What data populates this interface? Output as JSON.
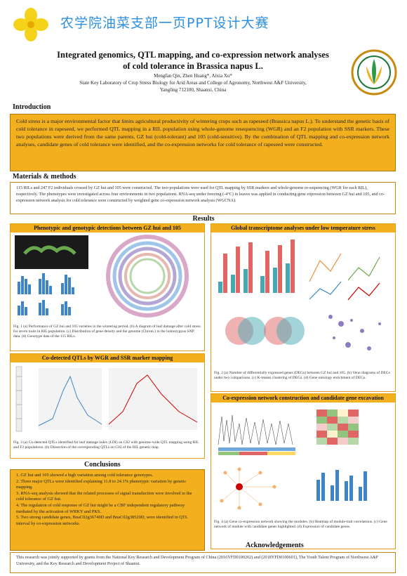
{
  "banner": {
    "title": "农学院油菜支部一页PPT设计大赛"
  },
  "poster": {
    "title_line1": "Integrated genomics, QTL mapping, and co-expression network analyses",
    "title_line2": "of cold tolerance in Brassica napus L.",
    "authors": "Mengfan Qin, Zhen Huang*, Aixia Xu*",
    "affiliation_line1": "State Key Laboratory of Crop Stress Biology for Arid Areas and College of Agronomy, Northwest A&F University,",
    "affiliation_line2": "Yangling 712100, Shaanxi, China"
  },
  "introduction": {
    "heading": "Introduction",
    "text": "Cold stress is a major environmental factor that limits agricultural productivity of wintering crops such as rapeseed (Brassica napus L.). To understand the genetic basis of cold tolerance in rapeseed, we performed QTL mapping in a RIL population using whole-genome resequencing (WGR) and an F2 population with SSR markers. These two populations were derived from the same parents, GZ hui (cold-tolerant) and 105 (cold-sensitive). By the combination of QTL mapping and co-expression network analyses, candidate genes of cold tolerance were identified, and the co-expression networks for cold tolerance of rapeseed were constructed."
  },
  "materials": {
    "heading": "Materials & methods",
    "text": "115 RILs and 247 F2 individuals crossed by GZ hui and 105 were constructed. The two populations were used for QTL mapping by SSR markers and whole-genome re-sequencing (WGR for each RIL), respectively. The phenotypes were investigated across four environments in two populations. RNA-seq under freezing (-4°C) in leaves was applied in conducting gene expression between GZ hui and 105, and co-expression network analysis for cold tolerance were constructed by weighted gene co-expression network analysis (WGCNA)."
  },
  "results": {
    "heading": "Results",
    "panel1_title": "Phenotypic and genotypic detections between GZ hui and 105",
    "panel1_caption": "Fig. 1 (a) Performance of GZ hui and 105 varieties in the wintering period. (b) A diagram of leaf damage after cold stress for seven traits in RIL population. (c) Distribution of gene density and the genome (Chrom.) in the homozygous SNP data. (d) Genotype data of the 115 RILs.",
    "panel2_title": "Global transcriptome analyses under low temperature stress",
    "panel2_caption": "Fig. 2 (a) Number of differentially expressed genes (DEGs) between GZ hui and 105. (b) Venn diagrams of DEGs under two comparisons. (c) K-means clustering of DEGs. (d) Gene ontology enrichment of DEGs.",
    "panel3_title": "Co-detected QTLs by WGR and SSR marker mapping",
    "panel3_caption": "Fig. 3 (a) Co-detected QTLs identified for leaf damage index (LDI) on C02 with genome-wide QTL mapping using RIL and F2 populations. (b) Dissection of the corresponding QTLs on C02 of the RIL genetic map.",
    "panel4_title": "Co-expression network construction and candidate gene excavation",
    "panel4_caption": "Fig. 4 (a) Gene co-expression network showing the modules. (b) Heatmap of module-trait correlations. (c) Gene network of module with candidate genes highlighted. (d) Expression of candidate genes."
  },
  "conclusions": {
    "heading": "Conclusions",
    "items": [
      "1. GZ hui and 105 showed a high variation among cold tolerance genotypes.",
      "2. Three major QTLs were identified explaining 11.8 to 24.1% phenotypic variation by genetic mapping.",
      "3. RNA-seq analysis showed that the related processes of signal transduction were involved in the cold tolerance of GZ hui.",
      "4. The regulation of cold response of GZ hui might be a CBF independent regulatory pathway mediated by the activation of WRKY and PKS.",
      "5. Two strong candidate genes, BnaC02g36740D and BnaC02g38520D, were identified in QTL interval by co-expression networks."
    ]
  },
  "acknowledgements": {
    "heading": "Acknowledgements",
    "text": "This research was jointly supported by grants from the National Key Research and Development Program of China (2016YFD0100202) and (2018YFD0100601), The Youth Talent Program of Northwest A&F University, and the Key Research and Development Project of Shaanxi."
  },
  "colors": {
    "accent": "#f2b01f",
    "banner_text": "#2d8fe0",
    "flower": "#f5d21a"
  }
}
